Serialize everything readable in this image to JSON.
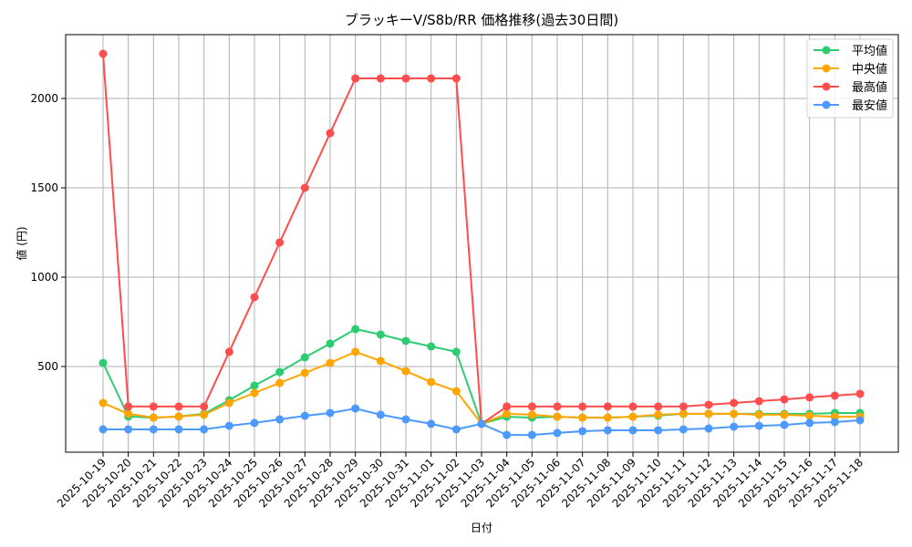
{
  "chart_data": {
    "type": "line",
    "title": "ブラッキーV/S8b/RR 価格推移(過去30日間)",
    "xlabel": "日付",
    "ylabel": "値 (円)",
    "yticks": [
      500,
      1000,
      1500,
      2000
    ],
    "ylim": [
      0,
      2330
    ],
    "grid": true,
    "legend_position": "upper right",
    "categories": [
      "2025-10-19",
      "2025-10-20",
      "2025-10-21",
      "2025-10-22",
      "2025-10-23",
      "2025-10-24",
      "2025-10-25",
      "2025-10-26",
      "2025-10-27",
      "2025-10-28",
      "2025-10-29",
      "2025-10-30",
      "2025-10-31",
      "2025-11-01",
      "2025-11-02",
      "2025-11-03",
      "2025-11-04",
      "2025-11-05",
      "2025-11-06",
      "2025-11-07",
      "2025-11-08",
      "2025-11-09",
      "2025-11-10",
      "2025-11-11",
      "2025-11-12",
      "2025-11-13",
      "2025-11-14",
      "2025-11-15",
      "2025-11-16",
      "2025-11-17",
      "2025-11-18"
    ],
    "series": [
      {
        "name": "平均値",
        "color": "#2ecc71",
        "values": [
          520,
          220,
          214,
          220,
          235,
          311,
          393,
          469,
          551,
          628,
          709,
          679,
          643,
          612,
          582,
          179,
          219,
          214,
          219,
          214,
          214,
          219,
          225,
          235,
          235,
          235,
          235,
          235,
          235,
          240,
          240
        ]
      },
      {
        "name": "中央値",
        "color": "#ffa500",
        "values": [
          296,
          235,
          214,
          220,
          230,
          296,
          352,
          408,
          464,
          520,
          582,
          531,
          474,
          413,
          362,
          179,
          235,
          230,
          219,
          214,
          214,
          219,
          230,
          235,
          235,
          235,
          230,
          230,
          224,
          219,
          219
        ]
      },
      {
        "name": "最高値",
        "color": "#ff4c4c",
        "values": [
          2250,
          276,
          276,
          276,
          276,
          582,
          888,
          1194,
          1500,
          1806,
          2112,
          2112,
          2112,
          2112,
          2112,
          179,
          276,
          276,
          276,
          276,
          276,
          276,
          276,
          276,
          286,
          296,
          306,
          316,
          327,
          337,
          347
        ]
      },
      {
        "name": "最安値",
        "color": "#4c9aff",
        "values": [
          148,
          148,
          148,
          148,
          148,
          168,
          184,
          204,
          224,
          240,
          265,
          230,
          204,
          179,
          148,
          179,
          117,
          117,
          128,
          138,
          143,
          143,
          143,
          148,
          153,
          163,
          168,
          173,
          184,
          189,
          199
        ]
      }
    ]
  }
}
